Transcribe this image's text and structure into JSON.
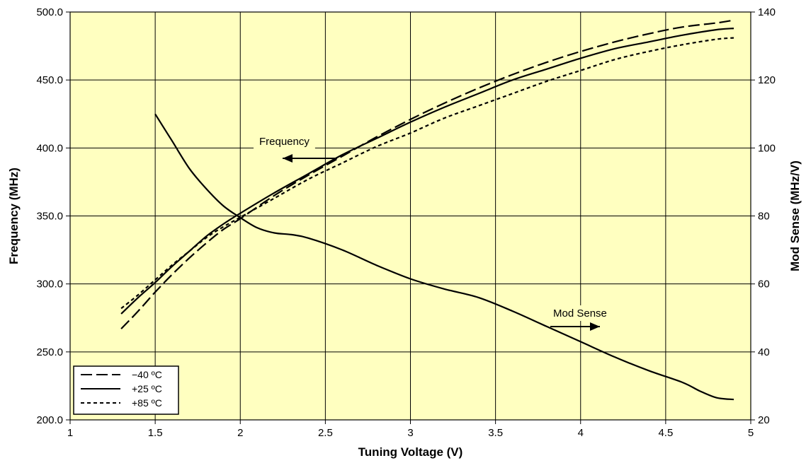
{
  "chart_data": {
    "type": "line",
    "xlabel": "Tuning Voltage (V)",
    "ylabel": "Frequency (MHz)",
    "y2label": "Mod Sense (MHz/V)",
    "xlim": [
      1,
      5
    ],
    "ylim": [
      200,
      500
    ],
    "y2lim": [
      20,
      140
    ],
    "x_ticks": [
      "1",
      "1.5",
      "2",
      "2.5",
      "3",
      "3.5",
      "4",
      "4.5",
      "5"
    ],
    "y_ticks": [
      "200.0",
      "250.0",
      "300.0",
      "350.0",
      "400.0",
      "450.0",
      "500.0"
    ],
    "y2_ticks": [
      "20",
      "40",
      "60",
      "80",
      "100",
      "120",
      "140"
    ],
    "grid": true,
    "plot_background": "#ffffc0",
    "legend_position": "bottom-left",
    "annotations": [
      {
        "text": "Frequency",
        "arrow": "left"
      },
      {
        "text": "Mod Sense",
        "arrow": "right"
      }
    ],
    "series": [
      {
        "name": "−40 ºC",
        "axis": "left",
        "style": "long-dash",
        "x": [
          1.3,
          1.4,
          1.5,
          1.6,
          1.7,
          1.8,
          1.9,
          2.0,
          2.2,
          2.4,
          2.6,
          2.8,
          3.0,
          3.2,
          3.4,
          3.6,
          3.8,
          4.0,
          4.2,
          4.4,
          4.6,
          4.8,
          4.9
        ],
        "y": [
          267,
          280,
          294,
          307,
          319,
          330,
          340,
          348,
          365,
          380,
          394,
          408,
          421,
          433,
          444,
          454,
          463,
          471,
          478,
          484,
          489,
          492,
          494
        ]
      },
      {
        "name": "+25 ºC",
        "axis": "left",
        "style": "solid",
        "x": [
          1.3,
          1.4,
          1.5,
          1.6,
          1.7,
          1.8,
          1.9,
          2.0,
          2.2,
          2.4,
          2.6,
          2.8,
          3.0,
          3.2,
          3.4,
          3.6,
          3.8,
          4.0,
          4.2,
          4.4,
          4.6,
          4.8,
          4.9
        ],
        "y": [
          278,
          290,
          301,
          313,
          324,
          335,
          344,
          352,
          367,
          381,
          395,
          407,
          419,
          430,
          440,
          450,
          458,
          466,
          473,
          478,
          483,
          487,
          488
        ]
      },
      {
        "name": "+85 ºC",
        "axis": "left",
        "style": "short-dash",
        "x": [
          1.3,
          1.4,
          1.5,
          1.6,
          1.7,
          1.8,
          1.9,
          2.0,
          2.2,
          2.4,
          2.6,
          2.8,
          3.0,
          3.2,
          3.4,
          3.6,
          3.8,
          4.0,
          4.2,
          4.4,
          4.6,
          4.8,
          4.9
        ],
        "y": [
          282,
          292,
          303,
          314,
          324,
          334,
          342,
          349,
          363,
          377,
          389,
          401,
          411,
          422,
          431,
          440,
          449,
          457,
          465,
          471,
          476,
          480,
          481
        ]
      },
      {
        "name": "Mod Sense",
        "axis": "right",
        "style": "solid",
        "x": [
          1.5,
          1.6,
          1.7,
          1.8,
          1.9,
          2.0,
          2.1,
          2.2,
          2.3,
          2.4,
          2.6,
          2.8,
          3.0,
          3.2,
          3.4,
          3.6,
          3.8,
          4.0,
          4.2,
          4.4,
          4.6,
          4.7,
          4.8,
          4.9
        ],
        "y": [
          110,
          102,
          94,
          88,
          83,
          79.5,
          76.5,
          75,
          74.5,
          73.5,
          70,
          65.5,
          61.5,
          58.5,
          56,
          52,
          47.5,
          43,
          38.5,
          34.5,
          31,
          28.5,
          26.5,
          26
        ]
      }
    ]
  }
}
